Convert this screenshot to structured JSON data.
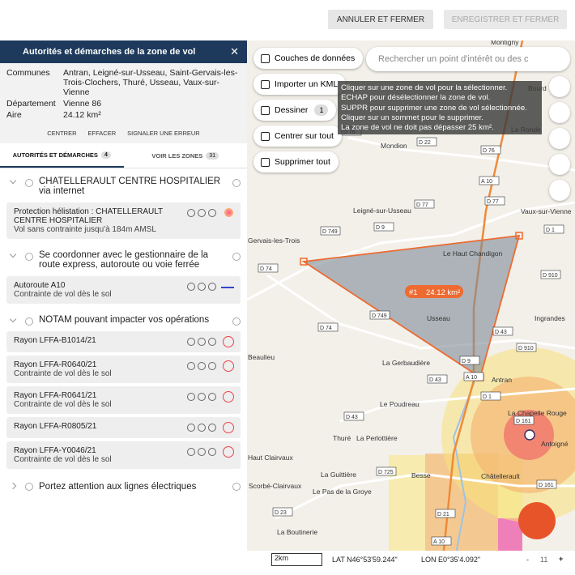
{
  "header": {
    "cancel": "ANNULER ET FERMER",
    "save": "ENREGISTRER ET FERMER"
  },
  "panel": {
    "title": "Autorités et démarches de la zone de vol",
    "info": [
      {
        "label": "Communes",
        "value": "Antran, Leigné-sur-Usseau, Saint-Gervais-les-Trois-Clochers, Thuré, Usseau, Vaux-sur-Vienne"
      },
      {
        "label": "Département",
        "value": "Vienne 86"
      },
      {
        "label": "Aire",
        "value": "24.12 km²"
      }
    ],
    "actions": [
      "CENTRER",
      "EFFACER",
      "SIGNALER UNE ERREUR"
    ],
    "tabs": [
      {
        "label": "AUTORITÉS ET DÉMARCHES",
        "count": 4
      },
      {
        "label": "VOIR LES ZONES",
        "count": 31
      }
    ],
    "groups": [
      {
        "title": "CHATELLERAULT CENTRE HOSPITALIER via internet",
        "items": [
          {
            "title": "Protection hélistation : CHATELLERAULT CENTRE HOSPITALIER",
            "subtitle": "Vol sans contrainte jusqu'à 184m AMSL"
          }
        ]
      },
      {
        "title": "Se coordonner avec le gestionnaire de la route express, autoroute ou voie ferrée",
        "items": [
          {
            "title": "Autoroute A10",
            "subtitle": "Contrainte de vol dès le sol"
          }
        ]
      },
      {
        "title": "NOTAM pouvant impacter vos opérations",
        "items": [
          {
            "title": "Rayon LFFA-B1014/21"
          },
          {
            "title": "Rayon LFFA-R0640/21",
            "subtitle": "Contrainte de vol dès le sol"
          },
          {
            "title": "Rayon LFFA-R0641/21",
            "subtitle": "Contrainte de vol dès le sol"
          },
          {
            "title": "Rayon LFFA-R0805/21"
          },
          {
            "title": "Rayon LFFA-Y0046/21",
            "subtitle": "Contrainte de vol dès le sol"
          }
        ]
      },
      {
        "title": "Portez attention aux lignes électriques",
        "items": []
      }
    ]
  },
  "map": {
    "buttons": [
      "Couches de données",
      "Importer un KML",
      "Dessiner",
      "Centrer sur tout",
      "Supprimer tout"
    ],
    "draw_count": 1,
    "search_placeholder": "Rechercher un point d'intérêt ou des c",
    "tooltip": [
      "Cliquer sur une zone de vol pour la sélectionner.",
      "ECHAP pour désélectionner la zone de vol.",
      "SUPPR pour supprimer une zone de vol sélectionnée.",
      "Cliquer sur un sommet pour le supprimer.",
      "La zone de vol ne doit pas dépasser 25 km²."
    ],
    "zone_id": "#1",
    "zone_area": "24.12 km²",
    "places": [
      "Mondion",
      "Leigné-sur-Usseau",
      "Vaux-sur-Vienne",
      "Le Haut Chandigon",
      "Usseau",
      "La Gerbaudière",
      "Antran",
      "Le Poudreau",
      "Thuré",
      "La Perlottière",
      "La Chapelle Rouge",
      "Antoigné",
      "Châtellerault",
      "Besse",
      "La Guittière",
      "Le Pas de la Groye",
      "Scorbé-Clairvaux",
      "Haut Clairvaux",
      "La Boutinerie",
      "Beaulieu",
      "Ingrandes",
      "Gervais-les-Trois",
      "Les Voisines",
      "Montigny",
      "La Ronde",
      "Bourd"
    ],
    "roads": [
      "D 22",
      "D 76",
      "A 10",
      "D 77",
      "D 77",
      "D 1",
      "D 749",
      "D 9",
      "D 74",
      "D 910",
      "D 749",
      "D 74",
      "D 43",
      "D 910",
      "D 9",
      "A 10",
      "D 43",
      "D 1",
      "D 43",
      "D 161",
      "D 725",
      "D 161",
      "D 23",
      "D 21",
      "A 10",
      "D 76"
    ],
    "scale": "2km",
    "lat": "LAT N46°53'59.244\"",
    "lon": "LON E0°35'4.092\"",
    "zoom": 11
  }
}
